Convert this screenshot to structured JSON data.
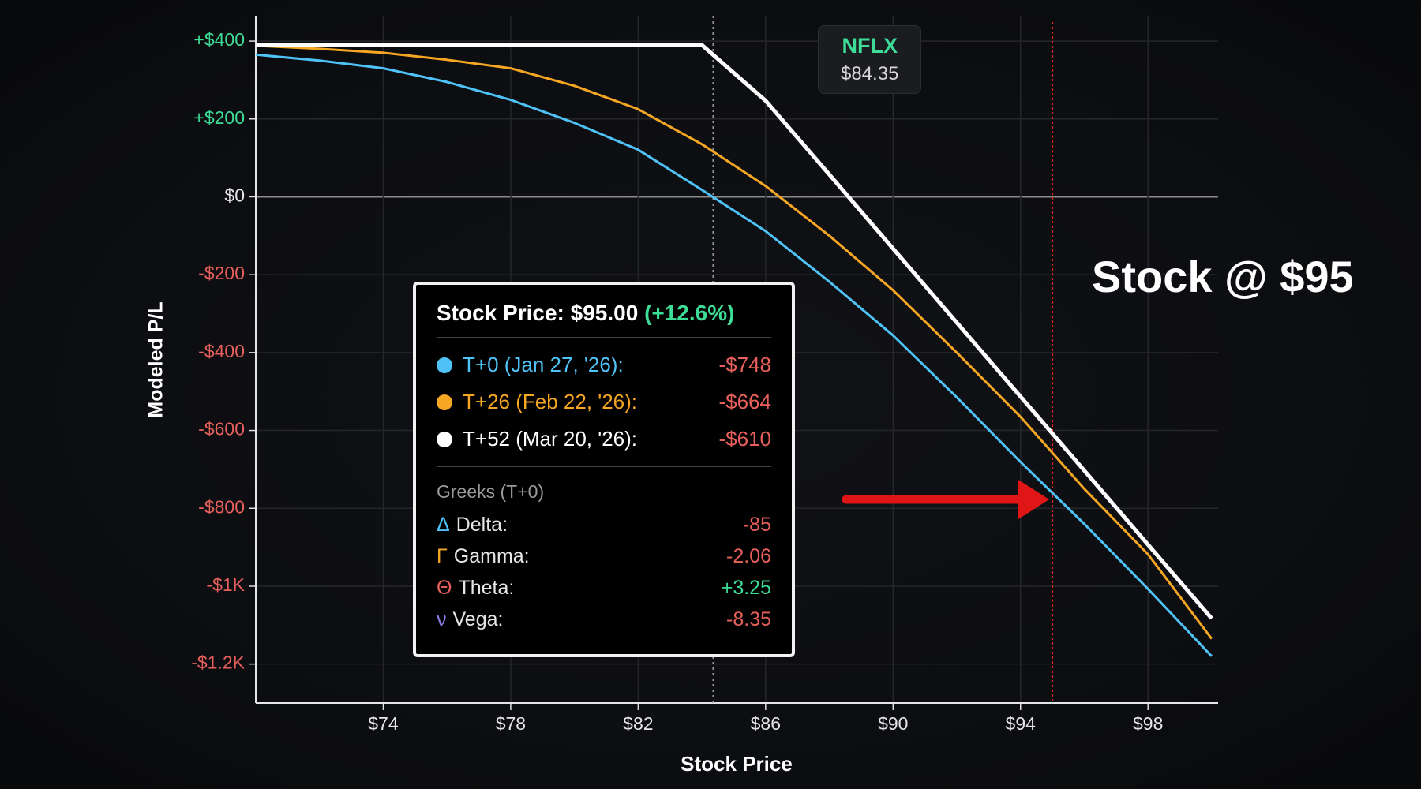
{
  "chart_data": {
    "type": "line",
    "x_label": "Stock Price",
    "y_label": "Modeled P/L",
    "x": [
      70,
      72,
      74,
      76,
      78,
      80,
      82,
      84,
      86,
      88,
      90,
      92,
      94,
      96,
      98,
      100
    ],
    "series": [
      {
        "name": "T+0 (Jan 27, '26):",
        "color": "#4fc3f7",
        "values": [
          365,
          350,
          330,
          295,
          249,
          190,
          121,
          18,
          -88,
          -218,
          -356,
          -515,
          -681,
          -840,
          -1007,
          -1180
        ]
      },
      {
        "name": "T+26 (Feb 22, '26):",
        "color": "#f5a623",
        "values": [
          388,
          380,
          370,
          352,
          330,
          285,
          225,
          135,
          28,
          -100,
          -240,
          -400,
          -565,
          -750,
          -918,
          -1135
        ]
      },
      {
        "name": "T+52 (Mar 20, '26):",
        "color": "#ffffff",
        "values": [
          390,
          390,
          390,
          390,
          390,
          390,
          390,
          390,
          247,
          57,
          -133,
          -323,
          -513,
          -703,
          -893,
          -1083
        ]
      }
    ],
    "xlim": [
      70,
      100.2
    ],
    "ylim": [
      -1300,
      465
    ],
    "xticks": [
      {
        "value": 74,
        "label": "$74"
      },
      {
        "value": 78,
        "label": "$78"
      },
      {
        "value": 82,
        "label": "$82"
      },
      {
        "value": 86,
        "label": "$86"
      },
      {
        "value": 90,
        "label": "$90"
      },
      {
        "value": 94,
        "label": "$94"
      },
      {
        "value": 98,
        "label": "$98"
      }
    ],
    "yticks": [
      {
        "value": 400,
        "label": "+$400"
      },
      {
        "value": 200,
        "label": "+$200"
      },
      {
        "value": 0,
        "label": "$0"
      },
      {
        "value": -200,
        "label": "-$200"
      },
      {
        "value": -400,
        "label": "-$400"
      },
      {
        "value": -600,
        "label": "-$600"
      },
      {
        "value": -800,
        "label": "-$800"
      },
      {
        "value": -1000,
        "label": "-$1K"
      },
      {
        "value": -1200,
        "label": "-$1.2K"
      }
    ],
    "grid": true,
    "current_price": {
      "x": 84.35,
      "symbol": "NFLX",
      "label": "$84.35",
      "color": "#9a9a9a"
    },
    "marker": {
      "x": 95,
      "color": "#e02424",
      "annotation": "Stock @ $95"
    },
    "tooltip": {
      "title": "Stock Price: $95.00",
      "change": "(+12.6%)",
      "values": [
        "-$748",
        "-$664",
        "-$610"
      ],
      "greeks_title": "Greeks (T+0)",
      "greeks": [
        {
          "symbol": "Δ",
          "label": "Delta:",
          "value": "-85",
          "color": "#4fc3f7"
        },
        {
          "symbol": "Γ",
          "label": "Gamma:",
          "value": "-2.06",
          "color": "#f5a623"
        },
        {
          "symbol": "Θ",
          "label": "Theta:",
          "value": "+3.25",
          "color": "#e8605c"
        },
        {
          "symbol": "ν",
          "label": "Vega:",
          "value": "-8.35",
          "color": "#8f7ee8"
        }
      ]
    }
  }
}
